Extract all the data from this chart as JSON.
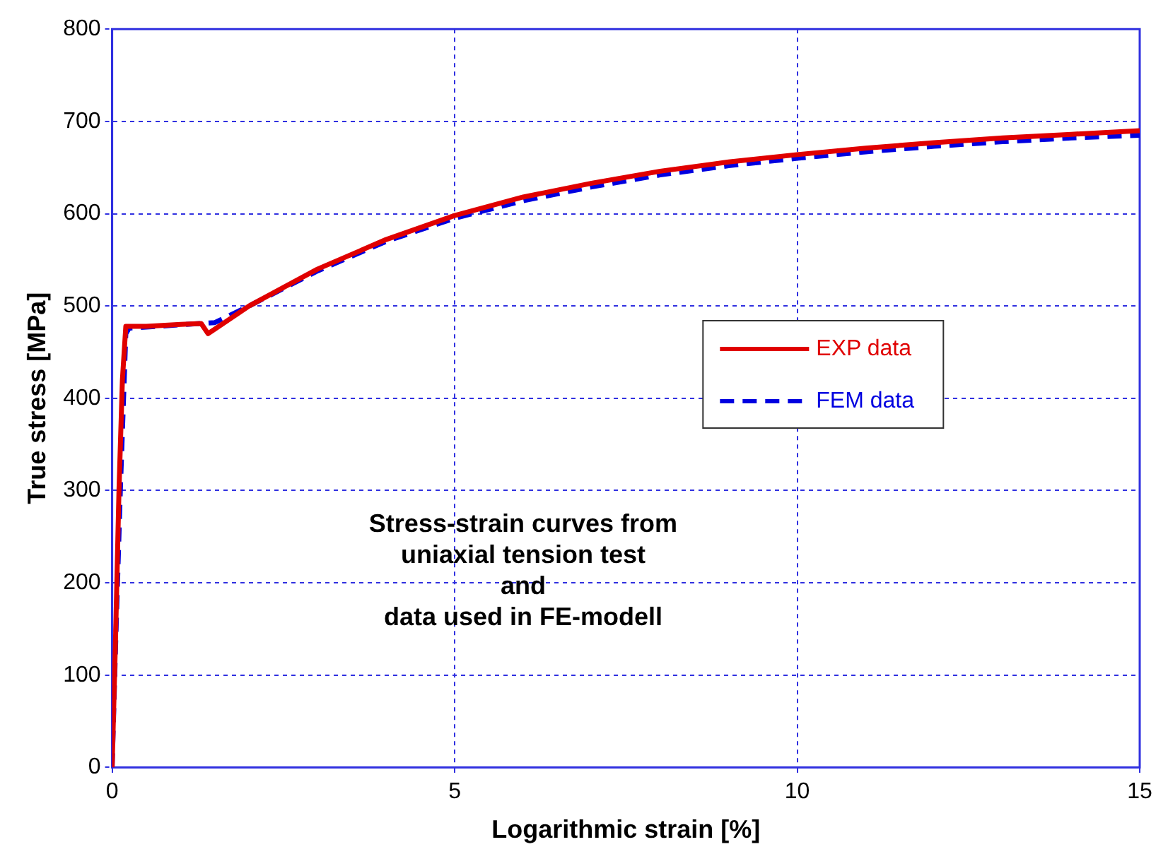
{
  "chart_data": {
    "type": "line",
    "xlabel": "Logarithmic strain [%]",
    "ylabel": "True stress [MPa]",
    "annotations": [
      "Stress-strain curves from\nuniaxial tension test\nand\ndata used in FE-modell"
    ],
    "xlim": [
      0,
      15
    ],
    "xticks": [
      0,
      5,
      10,
      15
    ],
    "ylim": [
      0,
      800
    ],
    "yticks": [
      0,
      100,
      200,
      300,
      400,
      500,
      600,
      700,
      800
    ],
    "grid": true,
    "legend": "right",
    "marker": "none",
    "series": [
      {
        "name": "EXP data",
        "color": "#e00000",
        "line_style": "solid",
        "x": [
          0,
          0.05,
          0.1,
          0.15,
          0.2,
          0.5,
          1.0,
          1.3,
          1.4,
          1.5,
          2,
          3,
          4,
          5,
          6,
          7,
          8,
          9,
          10,
          11,
          12,
          13,
          14,
          15
        ],
        "values": [
          0,
          140,
          300,
          420,
          478,
          478,
          480,
          481,
          470,
          475,
          500,
          540,
          572,
          598,
          618,
          633,
          646,
          656,
          664,
          671,
          677,
          682,
          686,
          690
        ]
      },
      {
        "name": "FEM data",
        "color": "#0000e0",
        "line_style": "dashed",
        "x": [
          0,
          0.05,
          0.12,
          0.2,
          0.25,
          1.3,
          1.5,
          2,
          3,
          4,
          5,
          6,
          7,
          8,
          9,
          10,
          11,
          12,
          13,
          14,
          15
        ],
        "values": [
          0,
          130,
          300,
          470,
          476,
          481,
          482,
          500,
          538,
          570,
          595,
          614,
          629,
          642,
          652,
          660,
          667,
          673,
          678,
          682,
          685
        ]
      }
    ]
  }
}
